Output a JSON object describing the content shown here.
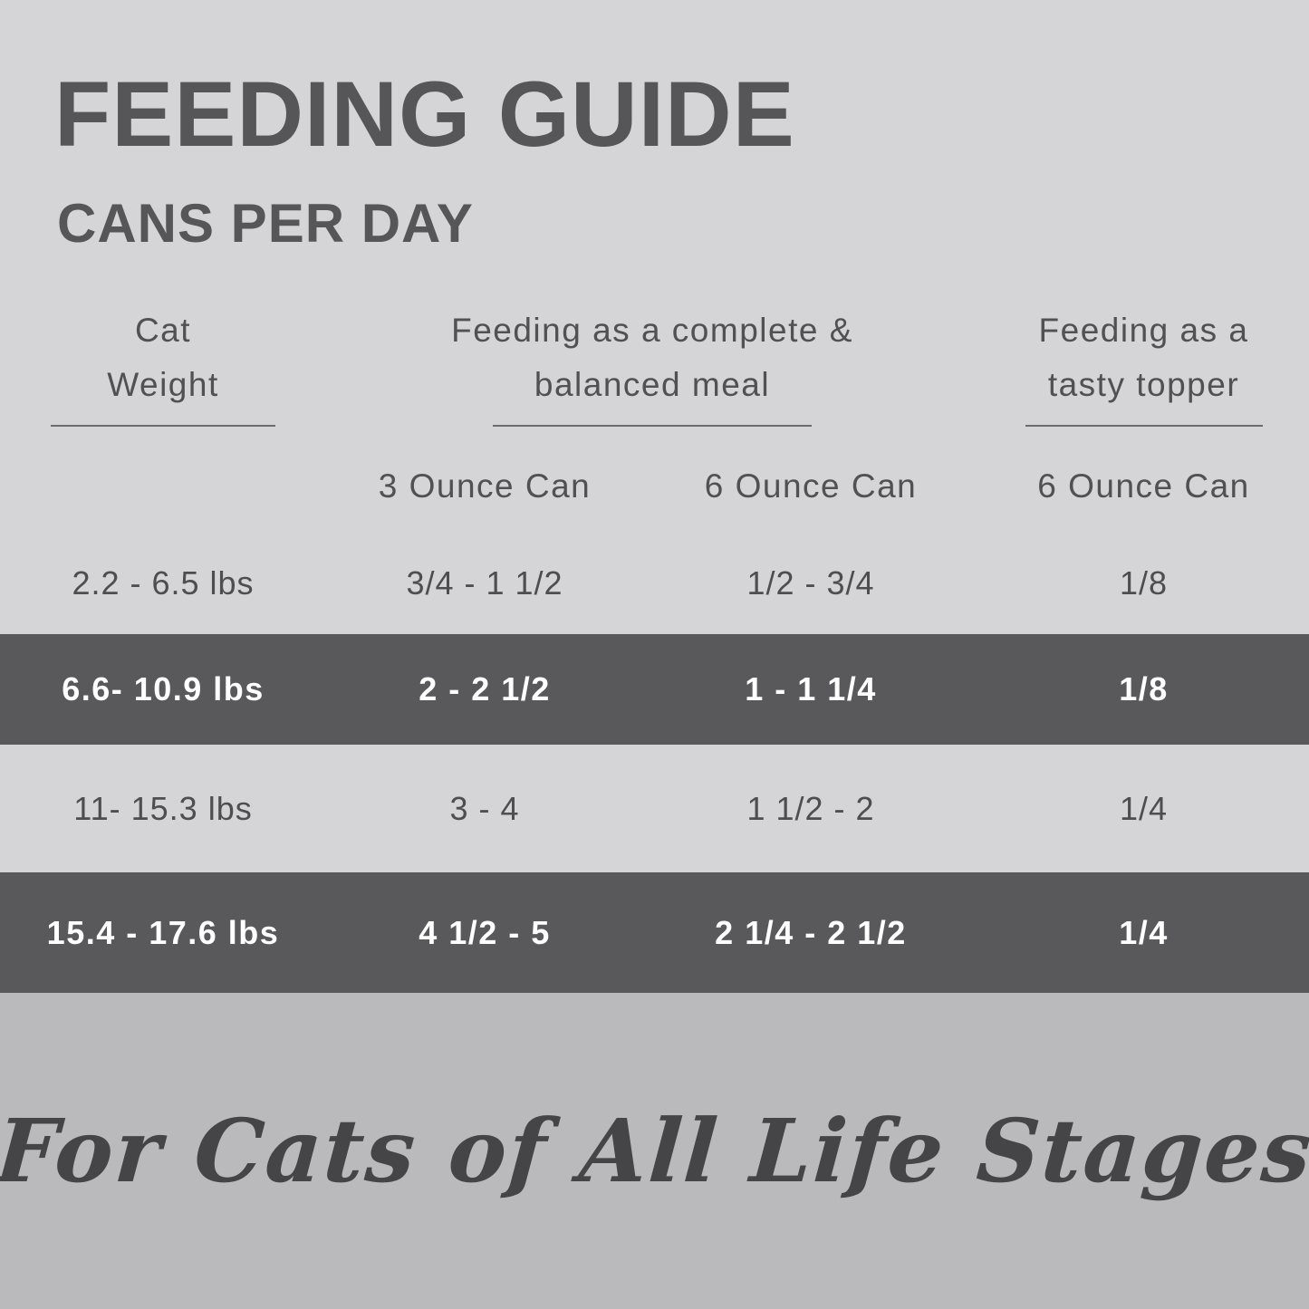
{
  "header": {
    "title": "FEEDING GUIDE",
    "subtitle": "CANS PER DAY"
  },
  "table": {
    "groups": [
      {
        "line1": "Cat",
        "line2": "Weight"
      },
      {
        "line1": "Feeding as a complete &",
        "line2": "balanced meal"
      },
      {
        "line1": "Feeding as a",
        "line2": "tasty topper"
      }
    ],
    "subheaders": {
      "meal_3oz": "3 Ounce Can",
      "meal_6oz": "6 Ounce Can",
      "topper_6oz": "6 Ounce Can"
    },
    "rows": [
      {
        "weight": "2.2 - 6.5 lbs",
        "meal_3oz": "3/4 - 1 1/2",
        "meal_6oz": "1/2 - 3/4",
        "topper_6oz": "1/8",
        "highlight": false
      },
      {
        "weight": "6.6- 10.9 lbs",
        "meal_3oz": "2 - 2 1/2",
        "meal_6oz": "1 - 1 1/4",
        "topper_6oz": "1/8",
        "highlight": true
      },
      {
        "weight": "11- 15.3 lbs",
        "meal_3oz": "3 - 4",
        "meal_6oz": "1 1/2 - 2",
        "topper_6oz": "1/4",
        "highlight": false
      },
      {
        "weight": "15.4 - 17.6 lbs",
        "meal_3oz": "4 1/2 - 5",
        "meal_6oz": "2 1/4 - 2 1/2",
        "topper_6oz": "1/4",
        "highlight": true
      }
    ]
  },
  "footer": {
    "tagline": "For Cats of All Life Stages"
  },
  "colors": {
    "background_light": "#d5d4d6",
    "background_footer": "#bab9bb",
    "highlight_band": "#59585a",
    "text_dark": "#4e4d50",
    "text_on_dark": "#ffffff"
  }
}
